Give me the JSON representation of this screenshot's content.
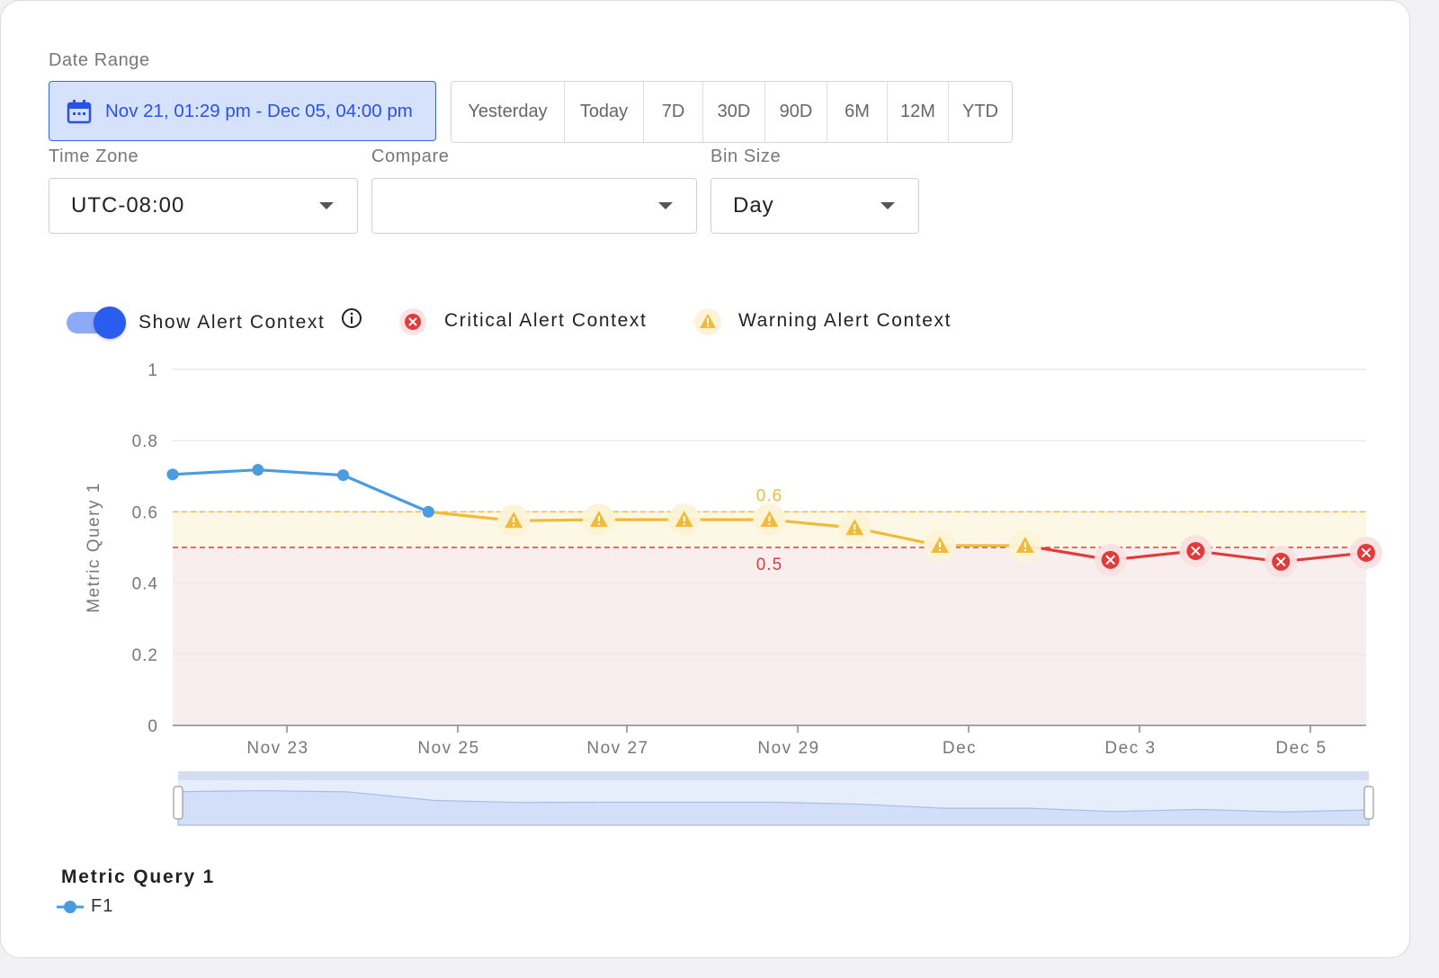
{
  "filters": {
    "date_range_label": "Date Range",
    "date_range_value": "Nov 21, 01:29 pm - Dec 05, 04:00 pm",
    "presets": [
      "Yesterday",
      "Today",
      "7D",
      "30D",
      "90D",
      "6M",
      "12M",
      "YTD"
    ],
    "timezone_label": "Time Zone",
    "timezone_value": "UTC-08:00",
    "compare_label": "Compare",
    "compare_value": "",
    "binsize_label": "Bin Size",
    "binsize_value": "Day"
  },
  "alert_legend": {
    "toggle_label": "Show Alert Context",
    "toggle_on": true,
    "critical_label": "Critical Alert Context",
    "warning_label": "Warning Alert Context"
  },
  "colors": {
    "accent": "#2a5cf0",
    "series": "#4a9be0",
    "critical": "#e03c3c",
    "warning": "#f0bb3a"
  },
  "chart_data": {
    "type": "line",
    "ylabel": "Metric Query 1",
    "ylim": [
      0,
      1
    ],
    "yticks": [
      "0",
      "0.2",
      "0.4",
      "0.6",
      "0.8",
      "1"
    ],
    "xticks": [
      "Nov 23",
      "Nov 25",
      "Nov 27",
      "Nov 29",
      "Dec",
      "Dec 3",
      "Dec 5"
    ],
    "thresholds": {
      "warning": {
        "value": 0.6,
        "label": "0.6"
      },
      "critical": {
        "value": 0.5,
        "label": "0.5"
      }
    },
    "series": [
      {
        "name": "F1",
        "x": [
          "Nov 21",
          "Nov 22",
          "Nov 23",
          "Nov 24",
          "Nov 25",
          "Nov 26",
          "Nov 27",
          "Nov 28",
          "Nov 29",
          "Nov 30",
          "Dec 1",
          "Dec 2",
          "Dec 3",
          "Dec 4",
          "Dec 5"
        ],
        "values": [
          0.705,
          0.718,
          0.703,
          0.6,
          0.575,
          0.578,
          0.578,
          0.578,
          0.555,
          0.505,
          0.505,
          0.465,
          0.49,
          0.46,
          0.485
        ]
      }
    ],
    "grid": true,
    "legend_title": "Metric Query 1",
    "legend_placement": "bottom-left"
  }
}
